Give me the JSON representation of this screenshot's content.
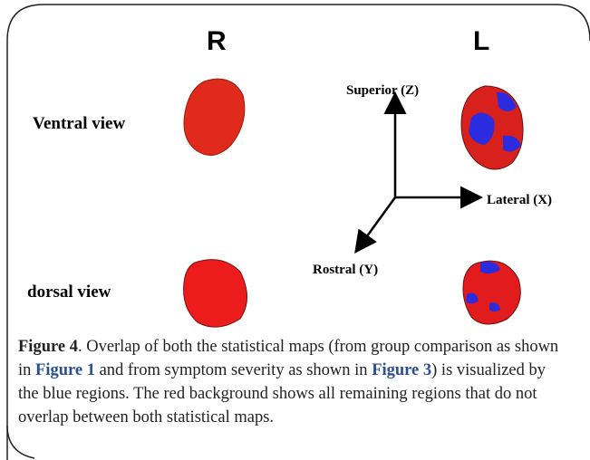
{
  "figure": {
    "hemispheres": [
      "R",
      "L"
    ],
    "views": [
      "Ventral view",
      "dorsal view"
    ],
    "axes": {
      "superior": "Superior (Z)",
      "lateral": "Lateral (X)",
      "rostral": "Rostral (Y)"
    },
    "caption": {
      "label": "Figure 4",
      "parts": [
        ". Overlap of both the statistical maps (from group comparison as shown in ",
        "Figure 1",
        " and from symptom severity as shown in ",
        "Figure 3",
        ") is visualized by the blue regions. The red background shows all remaining regions that do not overlap between both statistical maps."
      ]
    }
  }
}
